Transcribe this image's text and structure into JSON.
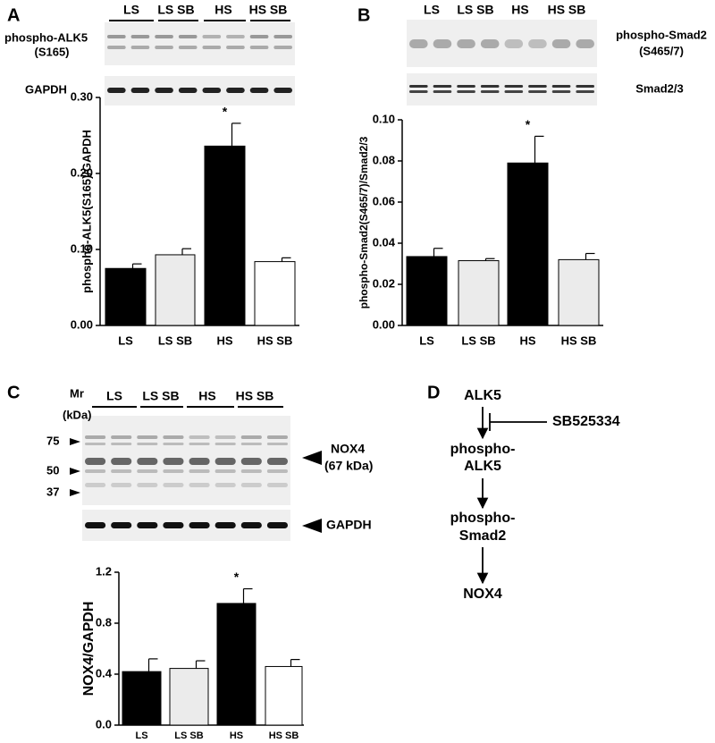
{
  "chart_data": [
    {
      "type": "bar",
      "ylabel": "phospho-ALK5(S165)/GAPDH",
      "categories": [
        "LS",
        "LS SB",
        "HS",
        "HS SB"
      ],
      "values": [
        0.075,
        0.093,
        0.236,
        0.084
      ],
      "errors": [
        0.006,
        0.008,
        0.03,
        0.005
      ],
      "annotations": [
        null,
        null,
        "*",
        null
      ],
      "colors": [
        "#000000",
        "#ebebeb",
        "#000000",
        "#ffffff"
      ],
      "ylim": [
        0,
        0.3
      ],
      "yticks": [
        {
          "value": 0,
          "label": "0.00"
        },
        {
          "value": 0.1,
          "label": "0.10"
        },
        {
          "value": 0.2,
          "label": "0.20"
        },
        {
          "value": 0.3,
          "label": "0.30"
        }
      ]
    },
    {
      "type": "bar",
      "ylabel": "phospho-Smad2(S465/7)/Smad2/3",
      "categories": [
        "LS",
        "LS SB",
        "HS",
        "HS SB"
      ],
      "values": [
        0.0335,
        0.0315,
        0.079,
        0.032
      ],
      "errors": [
        0.004,
        0.001,
        0.013,
        0.003
      ],
      "annotations": [
        null,
        null,
        "*",
        null
      ],
      "colors": [
        "#000000",
        "#ebebeb",
        "#000000",
        "#ebebeb"
      ],
      "ylim": [
        0,
        0.1
      ],
      "yticks": [
        {
          "value": 0,
          "label": "0.00"
        },
        {
          "value": 0.02,
          "label": "0.02"
        },
        {
          "value": 0.04,
          "label": "0.04"
        },
        {
          "value": 0.06,
          "label": "0.06"
        },
        {
          "value": 0.08,
          "label": "0.08"
        },
        {
          "value": 0.1,
          "label": "0.10"
        }
      ]
    },
    {
      "type": "bar",
      "ylabel": "NOX4/GAPDH",
      "categories": [
        "LS",
        "LS SB",
        "HS",
        "HS SB"
      ],
      "values": [
        0.42,
        0.445,
        0.955,
        0.46
      ],
      "errors": [
        0.1,
        0.06,
        0.115,
        0.055
      ],
      "annotations": [
        null,
        null,
        "*",
        null
      ],
      "colors": [
        "#000000",
        "#ebebeb",
        "#000000",
        "#ffffff"
      ],
      "ylim": [
        0,
        1.2
      ],
      "yticks": [
        {
          "value": 0,
          "label": "0.0"
        },
        {
          "value": 0.4,
          "label": "0.4"
        },
        {
          "value": 0.8,
          "label": "0.8"
        },
        {
          "value": 1.2,
          "label": "1.2"
        }
      ]
    }
  ],
  "panel_letters": [
    "A",
    "B",
    "C",
    "D"
  ],
  "blots": [
    {
      "lanes": [
        "LS",
        "LS SB",
        "HS",
        "HS SB"
      ],
      "top_label": [
        "phospho-ALK5",
        "(S165)"
      ],
      "bottom_label": [
        "GAPDH"
      ]
    },
    {
      "lanes": [
        "LS",
        "LS SB",
        "HS",
        "HS SB"
      ],
      "top_label": [
        "phospho-Smad2",
        "(S465/7)"
      ],
      "bottom_label": [
        "Smad2/3"
      ]
    },
    {
      "lanes": [
        "LS",
        "LS SB",
        "HS",
        "HS SB"
      ],
      "marker_title": [
        "Mr",
        "(kDa)"
      ],
      "markers": [
        75,
        50,
        37
      ],
      "top_label": [
        "NOX4",
        "(67 kDa)"
      ],
      "bottom_label": [
        "GAPDH"
      ]
    }
  ],
  "diagram": {
    "nodes": [
      [
        "ALK5"
      ],
      [
        "phospho-",
        "ALK5"
      ],
      [
        "phospho-",
        "Smad2"
      ],
      [
        "NOX4"
      ]
    ],
    "inhibitor": "SB525334"
  }
}
